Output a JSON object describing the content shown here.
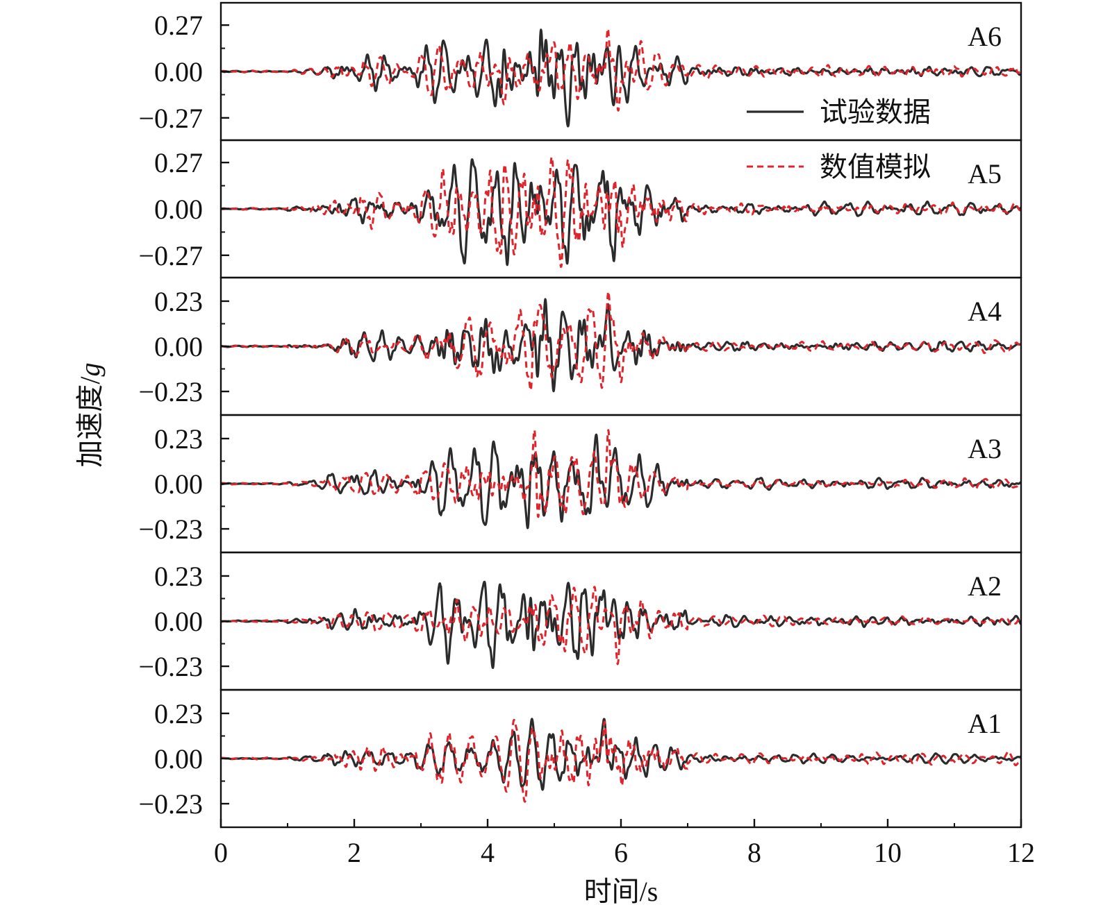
{
  "chart_data": {
    "type": "line",
    "xlabel": "时间/s",
    "ylabel_main": "加速度/",
    "ylabel_unit": "g",
    "xlim": [
      0,
      12
    ],
    "xticks": [
      0,
      2,
      4,
      6,
      8,
      10,
      12
    ],
    "xtick_labels": [
      "0",
      "2",
      "4",
      "6",
      "8",
      "10",
      "12"
    ],
    "grid": false,
    "legend_position": "top-right",
    "series": [
      {
        "name": "试验数据",
        "color": "#2b2b2b",
        "style": "solid"
      },
      {
        "name": "数值模拟",
        "color": "#e0242b",
        "style": "dashed"
      }
    ],
    "panels": [
      {
        "label": "A6",
        "ylim": [
          -0.4,
          0.4
        ],
        "yticks": [
          0.27,
          0.0,
          -0.27
        ],
        "ytick_labels": [
          "0.27",
          "0.00",
          "−0.27"
        ],
        "peaks_test": [
          [
            4.2,
            -0.29
          ],
          [
            4.8,
            0.26
          ],
          [
            5.2,
            -0.27
          ],
          [
            5.8,
            0.28
          ],
          [
            5.9,
            -0.29
          ]
        ],
        "peaks_sim": [
          [
            4.25,
            -0.27
          ],
          [
            5.0,
            0.24
          ],
          [
            5.8,
            0.36
          ],
          [
            5.95,
            -0.28
          ],
          [
            6.3,
            0.13
          ]
        ]
      },
      {
        "label": "A5",
        "ylim": [
          -0.4,
          0.4
        ],
        "yticks": [
          0.27,
          0.0,
          -0.27
        ],
        "ytick_labels": [
          "0.27",
          "0.00",
          "−0.27"
        ],
        "peaks_test": [
          [
            4.2,
            -0.26
          ],
          [
            4.8,
            0.23
          ],
          [
            5.8,
            0.27
          ],
          [
            5.9,
            -0.25
          ]
        ],
        "peaks_sim": [
          [
            4.2,
            -0.25
          ],
          [
            5.8,
            0.31
          ],
          [
            5.95,
            -0.26
          ],
          [
            6.3,
            0.13
          ]
        ]
      },
      {
        "label": "A4",
        "ylim": [
          -0.35,
          0.35
        ],
        "yticks": [
          0.23,
          0.0,
          -0.23
        ],
        "ytick_labels": [
          "0.23",
          "0.00",
          "−0.23"
        ],
        "peaks_test": [
          [
            4.2,
            -0.22
          ],
          [
            4.7,
            0.2
          ],
          [
            5.8,
            0.3
          ],
          [
            5.9,
            -0.18
          ]
        ],
        "peaks_sim": [
          [
            4.7,
            0.23
          ],
          [
            5.8,
            0.28
          ],
          [
            6.0,
            -0.14
          ]
        ]
      },
      {
        "label": "A3",
        "ylim": [
          -0.35,
          0.35
        ],
        "yticks": [
          0.23,
          0.0,
          -0.23
        ],
        "ytick_labels": [
          "0.23",
          "0.00",
          "−0.23"
        ],
        "peaks_test": [
          [
            4.65,
            0.26
          ],
          [
            4.6,
            -0.21
          ],
          [
            5.75,
            0.28
          ],
          [
            5.55,
            -0.15
          ]
        ],
        "peaks_sim": [
          [
            4.7,
            0.24
          ],
          [
            5.8,
            0.34
          ],
          [
            4.75,
            -0.22
          ]
        ]
      },
      {
        "label": "A2",
        "ylim": [
          -0.35,
          0.35
        ],
        "yticks": [
          0.23,
          0.0,
          -0.23
        ],
        "ytick_labels": [
          "0.23",
          "0.00",
          "−0.23"
        ],
        "peaks_test": [
          [
            4.65,
            0.24
          ],
          [
            4.6,
            -0.2
          ],
          [
            5.75,
            0.3
          ]
        ],
        "peaks_sim": [
          [
            5.75,
            0.2
          ],
          [
            5.95,
            -0.2
          ],
          [
            6.2,
            0.1
          ]
        ]
      },
      {
        "label": "A1",
        "ylim": [
          -0.35,
          0.35
        ],
        "yticks": [
          0.23,
          0.0,
          -0.23
        ],
        "ytick_labels": [
          "0.23",
          "0.00",
          "−0.23"
        ],
        "peaks_test": [
          [
            4.65,
            0.26
          ],
          [
            4.65,
            -0.2
          ],
          [
            5.75,
            0.3
          ]
        ],
        "peaks_sim": [
          [
            4.65,
            0.25
          ],
          [
            5.75,
            0.31
          ],
          [
            4.65,
            -0.19
          ]
        ]
      }
    ]
  }
}
